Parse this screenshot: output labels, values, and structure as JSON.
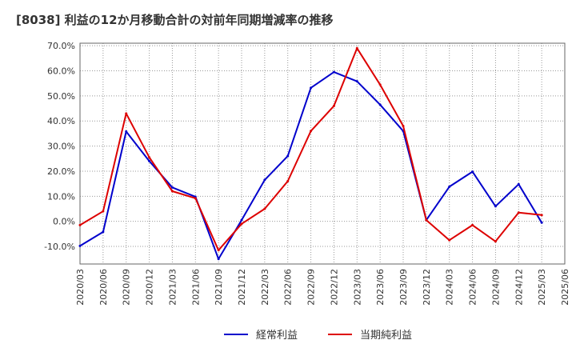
{
  "chart_data": {
    "type": "line",
    "title": "[8038]  利益の12か月移動合計の対前年同期増減率の推移",
    "xlabel": "",
    "ylabel": "",
    "ylim": [
      -17,
      71
    ],
    "yticks": [
      -10,
      0,
      10,
      20,
      30,
      40,
      50,
      60,
      70
    ],
    "ytick_labels": [
      "-10.0%",
      "0.0%",
      "10.0%",
      "20.0%",
      "30.0%",
      "40.0%",
      "50.0%",
      "60.0%",
      "70.0%"
    ],
    "categories": [
      "2020/03",
      "2020/06",
      "2020/09",
      "2020/12",
      "2021/03",
      "2021/06",
      "2021/09",
      "2021/12",
      "2022/03",
      "2022/06",
      "2022/09",
      "2022/12",
      "2023/03",
      "2023/06",
      "2023/09",
      "2023/12",
      "2024/03",
      "2024/06",
      "2024/09",
      "2024/12",
      "2025/03",
      "2025/06"
    ],
    "grid": true,
    "legend_position": "bottom",
    "series": [
      {
        "name": "経常利益",
        "color": "#0000cc",
        "values": [
          -9.8,
          -4.2,
          35.8,
          24.0,
          13.5,
          9.8,
          -15.0,
          0.5,
          16.5,
          26.0,
          53.2,
          59.5,
          55.8,
          46.5,
          36.0,
          0.5,
          13.8,
          19.8,
          6.0,
          14.8,
          -0.5,
          null
        ]
      },
      {
        "name": "当期純利益",
        "color": "#dd0000",
        "values": [
          -1.5,
          4.0,
          43.0,
          25.5,
          12.0,
          9.2,
          -11.5,
          -1.0,
          5.0,
          16.0,
          36.0,
          46.0,
          69.0,
          54.5,
          38.0,
          0.5,
          -7.5,
          -1.5,
          -8.0,
          3.5,
          2.5,
          null
        ]
      }
    ]
  }
}
